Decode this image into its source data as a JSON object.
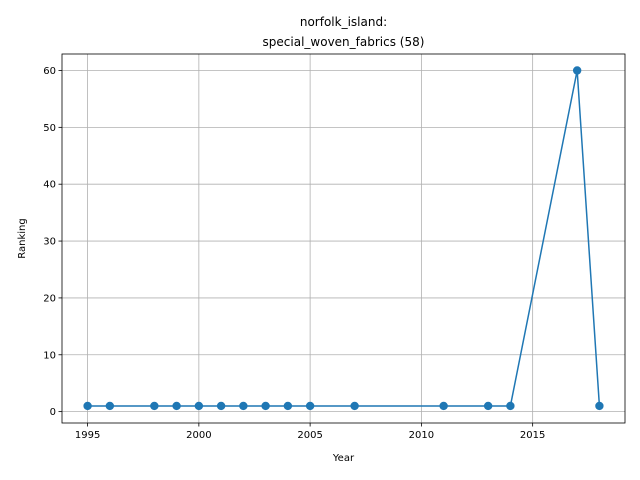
{
  "chart_data": {
    "type": "line",
    "title_lines": [
      "norfolk_island:",
      "special_woven_fabrics (58)"
    ],
    "xlabel": "Year",
    "ylabel": "Ranking",
    "xlim": [
      1993.85,
      2019.15
    ],
    "ylim": [
      -2.0,
      62.9
    ],
    "xticks": [
      1995,
      2000,
      2005,
      2010,
      2015
    ],
    "yticks": [
      0,
      10,
      20,
      30,
      40,
      50,
      60
    ],
    "grid": true,
    "series": [
      {
        "color": "#1f77b4",
        "marker": "circle",
        "x": [
          1995,
          1996,
          1998,
          1999,
          2000,
          2001,
          2002,
          2003,
          2004,
          2005,
          2007,
          2011,
          2013,
          2014,
          2017,
          2018
        ],
        "y": [
          1,
          1,
          1,
          1,
          1,
          1,
          1,
          1,
          1,
          1,
          1,
          1,
          1,
          1,
          60,
          1
        ]
      }
    ]
  }
}
